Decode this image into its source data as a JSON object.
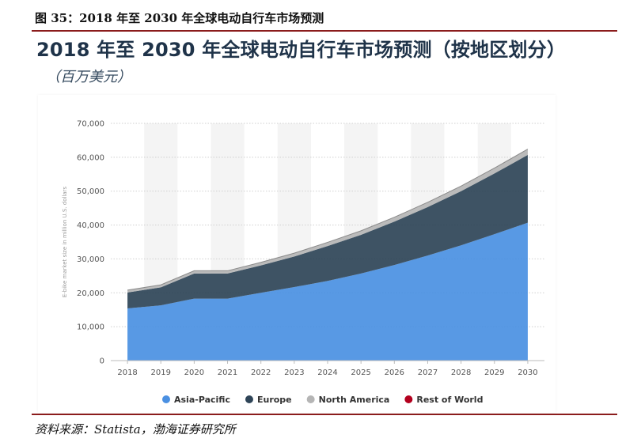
{
  "figure_caption": "图 35：2018 年至 2030 年全球电动自行车市场预测",
  "chart_title": "2018 年至 2030 年全球电动自行车市场预测（按地区划分）",
  "chart_subtitle": "（百万美元）",
  "source_text": "资料来源：Statista，渤海证券研究所",
  "chart_data": {
    "type": "area",
    "stacked": true,
    "ylabel": "E-bike market size in million U.S. dollars",
    "ylim": [
      0,
      70000
    ],
    "yticks": [
      0,
      10000,
      20000,
      30000,
      40000,
      50000,
      60000,
      70000
    ],
    "ytick_labels": [
      "0",
      "10,000",
      "20,000",
      "30,000",
      "40,000",
      "50,000",
      "60,000",
      "70,000"
    ],
    "categories": [
      "2018",
      "2019",
      "2020",
      "2021",
      "2022",
      "2023",
      "2024",
      "2025",
      "2026",
      "2027",
      "2028",
      "2029",
      "2030"
    ],
    "series": [
      {
        "name": "Asia-Pacific",
        "color": "#4a90e2",
        "values": [
          15400,
          16300,
          18300,
          18300,
          20000,
          21700,
          23500,
          25700,
          28200,
          31000,
          34000,
          37300,
          40700
        ]
      },
      {
        "name": "Europe",
        "color": "#2e4457",
        "values": [
          4700,
          5300,
          7400,
          7400,
          8100,
          9000,
          10300,
          11400,
          12800,
          14300,
          16000,
          17900,
          20000
        ]
      },
      {
        "name": "North America",
        "color": "#b5b5b5",
        "values": [
          700,
          750,
          800,
          800,
          900,
          1000,
          1100,
          1200,
          1300,
          1400,
          1500,
          1600,
          1700
        ]
      },
      {
        "name": "Rest of World",
        "color": "#b3001e",
        "values": [
          0,
          0,
          0,
          0,
          0,
          0,
          0,
          0,
          0,
          0,
          0,
          0,
          0
        ]
      }
    ],
    "grid": true,
    "legend_position": "bottom"
  }
}
